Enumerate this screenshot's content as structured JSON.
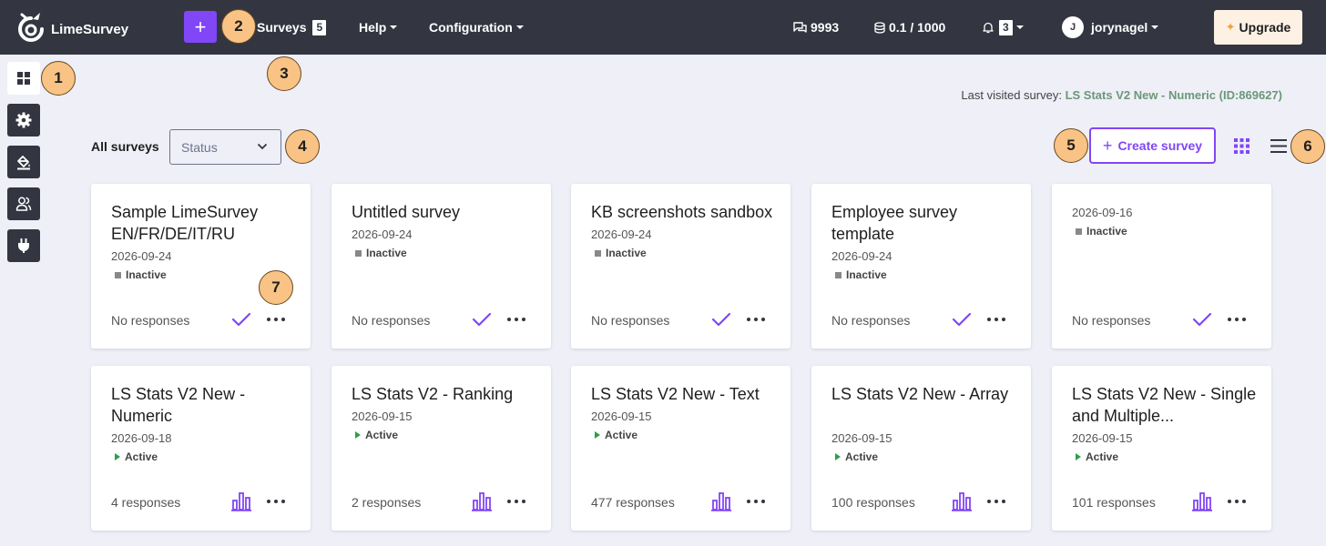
{
  "app": {
    "logo_text": "LimeSurvey",
    "accent_color": "#8146f6",
    "topbar_color": "#333641"
  },
  "nav": {
    "add_label": "+",
    "surveys_label": "Surveys",
    "surveys_count": "5",
    "help_label": "Help",
    "configuration_label": "Configuration",
    "responses_count": "9993",
    "storage_usage": "0.1 / 1000",
    "notifications_count": "3",
    "user_initial": "J",
    "username": "jorynagel",
    "upgrade_label": "Upgrade"
  },
  "sidebar": {
    "items": [
      {
        "icon": "grid-icon",
        "active": true
      },
      {
        "icon": "gear-icon",
        "active": false
      },
      {
        "icon": "paint-bucket-icon",
        "active": false
      },
      {
        "icon": "users-icon",
        "active": false
      },
      {
        "icon": "plug-icon",
        "active": false
      }
    ]
  },
  "markers": [
    "1",
    "2",
    "3",
    "4",
    "5",
    "6",
    "7"
  ],
  "main": {
    "last_visited_label": "Last visited survey:",
    "last_visited_link": "LS Stats V2 New - Numeric (ID:869627)",
    "all_surveys_label": "All surveys",
    "status_placeholder": "Status",
    "create_survey_label": "Create survey"
  },
  "cards": [
    {
      "title": "Sample LimeSurvey EN/FR/DE/IT/RU",
      "date": "2026-09-24",
      "status": "Inactive",
      "responses": "No responses",
      "action_icon": "check-icon"
    },
    {
      "title": "Untitled survey",
      "date": "2026-09-24",
      "status": "Inactive",
      "responses": "No responses",
      "action_icon": "check-icon"
    },
    {
      "title": "KB screenshots sandbox",
      "date": "2026-09-24",
      "status": "Inactive",
      "responses": "No responses",
      "action_icon": "check-icon"
    },
    {
      "title": "Employee survey template",
      "date": "2026-09-24",
      "status": "Inactive",
      "responses": "No responses",
      "action_icon": "check-icon"
    },
    {
      "title": "",
      "date": "2026-09-16",
      "status": "Inactive",
      "responses": "No responses",
      "action_icon": "check-icon"
    },
    {
      "title": "LS Stats V2 New - Numeric",
      "date": "2026-09-18",
      "status": "Active",
      "responses": "4 responses",
      "action_icon": "bar-chart-icon"
    },
    {
      "title": "LS Stats V2 - Ranking",
      "date": "2026-09-15",
      "status": "Active",
      "responses": "2 responses",
      "action_icon": "bar-chart-icon"
    },
    {
      "title": "LS Stats V2 New - Text",
      "date": "2026-09-15",
      "status": "Active",
      "responses": "477 responses",
      "action_icon": "bar-chart-icon"
    },
    {
      "title": "LS Stats V2 New - Array",
      "date": "2026-09-15",
      "status": "Active",
      "responses": "100 responses",
      "action_icon": "bar-chart-icon"
    },
    {
      "title": "LS Stats V2 New - Single and Multiple...",
      "date": "2026-09-15",
      "status": "Active",
      "responses": "101 responses",
      "action_icon": "bar-chart-icon"
    }
  ]
}
